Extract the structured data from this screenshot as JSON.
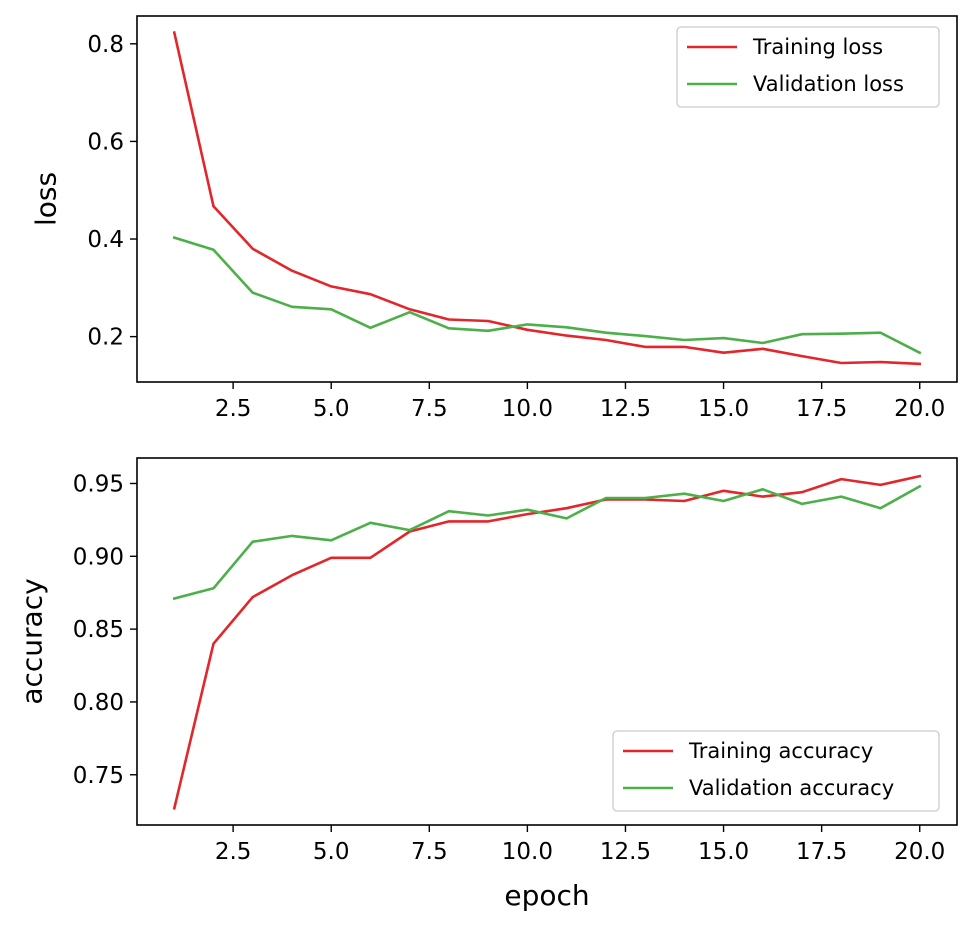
{
  "chart_data": [
    {
      "type": "line",
      "title": "",
      "xlabel": "",
      "ylabel": "loss",
      "xlim": [
        0.05,
        20.95
      ],
      "ylim": [
        0.107,
        0.857
      ],
      "xticks": [
        2.5,
        5.0,
        7.5,
        10.0,
        12.5,
        15.0,
        17.5,
        20.0
      ],
      "yticks": [
        0.2,
        0.4,
        0.6,
        0.8
      ],
      "legend_position": "top-right",
      "grid": false,
      "x": [
        1,
        2,
        3,
        4,
        5,
        6,
        7,
        8,
        9,
        10,
        11,
        12,
        13,
        14,
        15,
        16,
        17,
        18,
        19,
        20
      ],
      "series": [
        {
          "name": "Training loss",
          "color": "#e3262a",
          "values": [
            0.823,
            0.467,
            0.38,
            0.335,
            0.303,
            0.287,
            0.256,
            0.235,
            0.232,
            0.214,
            0.202,
            0.193,
            0.179,
            0.179,
            0.167,
            0.175,
            0.16,
            0.146,
            0.148,
            0.144
          ]
        },
        {
          "name": "Validation loss",
          "color": "#4daf4a",
          "values": [
            0.403,
            0.378,
            0.29,
            0.261,
            0.256,
            0.218,
            0.25,
            0.217,
            0.212,
            0.225,
            0.219,
            0.208,
            0.201,
            0.193,
            0.197,
            0.187,
            0.205,
            0.206,
            0.208,
            0.167
          ]
        }
      ]
    },
    {
      "type": "line",
      "title": "",
      "xlabel": "epoch",
      "ylabel": "accuracy",
      "xlim": [
        0.05,
        20.95
      ],
      "ylim": [
        0.7155,
        0.9675
      ],
      "xticks": [
        2.5,
        5.0,
        7.5,
        10.0,
        12.5,
        15.0,
        17.5,
        20.0
      ],
      "yticks": [
        0.75,
        0.8,
        0.85,
        0.9,
        0.95
      ],
      "legend_position": "bottom-right",
      "grid": false,
      "x": [
        1,
        2,
        3,
        4,
        5,
        6,
        7,
        8,
        9,
        10,
        11,
        12,
        13,
        14,
        15,
        16,
        17,
        18,
        19,
        20
      ],
      "series": [
        {
          "name": "Training accuracy",
          "color": "#e3262a",
          "values": [
            0.727,
            0.84,
            0.872,
            0.887,
            0.899,
            0.899,
            0.917,
            0.924,
            0.924,
            0.929,
            0.933,
            0.939,
            0.939,
            0.938,
            0.945,
            0.941,
            0.944,
            0.953,
            0.949,
            0.955
          ]
        },
        {
          "name": "Validation accuracy",
          "color": "#4daf4a",
          "values": [
            0.871,
            0.878,
            0.91,
            0.914,
            0.911,
            0.923,
            0.918,
            0.931,
            0.928,
            0.932,
            0.926,
            0.94,
            0.94,
            0.943,
            0.938,
            0.946,
            0.936,
            0.941,
            0.933,
            0.948
          ]
        }
      ]
    }
  ]
}
